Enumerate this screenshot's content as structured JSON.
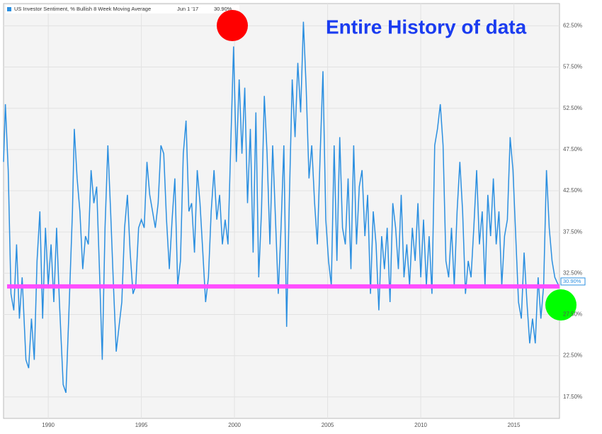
{
  "chart_data": {
    "type": "line",
    "title": "Entire History of data",
    "x": [
      1987.6,
      1987.7,
      1987.85,
      1988.0,
      1988.15,
      1988.3,
      1988.45,
      1988.6,
      1988.8,
      1988.95,
      1989.1,
      1989.25,
      1989.4,
      1989.55,
      1989.7,
      1989.85,
      1990.0,
      1990.15,
      1990.3,
      1990.45,
      1990.6,
      1990.8,
      1990.95,
      1991.1,
      1991.3,
      1991.4,
      1991.55,
      1991.7,
      1991.85,
      1992.0,
      1992.15,
      1992.3,
      1992.45,
      1992.6,
      1992.75,
      1992.9,
      1993.05,
      1993.2,
      1993.35,
      1993.5,
      1993.65,
      1993.8,
      1993.95,
      1994.1,
      1994.25,
      1994.4,
      1994.55,
      1994.7,
      1994.85,
      1995.0,
      1995.15,
      1995.3,
      1995.45,
      1995.6,
      1995.75,
      1995.9,
      1996.05,
      1996.2,
      1996.35,
      1996.5,
      1996.65,
      1996.8,
      1996.95,
      1997.1,
      1997.25,
      1997.4,
      1997.55,
      1997.7,
      1997.85,
      1998.0,
      1998.15,
      1998.3,
      1998.45,
      1998.6,
      1998.75,
      1998.9,
      1999.05,
      1999.2,
      1999.35,
      1999.5,
      1999.65,
      1999.8,
      1999.95,
      2000.1,
      2000.25,
      2000.4,
      2000.55,
      2000.7,
      2000.85,
      2001.0,
      2001.15,
      2001.3,
      2001.45,
      2001.6,
      2001.75,
      2001.9,
      2002.05,
      2002.2,
      2002.35,
      2002.5,
      2002.65,
      2002.8,
      2002.95,
      2003.1,
      2003.25,
      2003.4,
      2003.55,
      2003.7,
      2003.85,
      2004.0,
      2004.15,
      2004.3,
      2004.45,
      2004.6,
      2004.75,
      2004.9,
      2005.05,
      2005.2,
      2005.35,
      2005.5,
      2005.65,
      2005.8,
      2005.95,
      2006.1,
      2006.25,
      2006.4,
      2006.55,
      2006.7,
      2006.85,
      2007.0,
      2007.15,
      2007.3,
      2007.45,
      2007.6,
      2007.75,
      2007.9,
      2008.05,
      2008.2,
      2008.35,
      2008.5,
      2008.65,
      2008.8,
      2008.95,
      2009.1,
      2009.25,
      2009.4,
      2009.55,
      2009.7,
      2009.85,
      2010.0,
      2010.15,
      2010.3,
      2010.45,
      2010.6,
      2010.75,
      2010.9,
      2011.05,
      2011.2,
      2011.35,
      2011.5,
      2011.65,
      2011.8,
      2011.95,
      2012.1,
      2012.25,
      2012.4,
      2012.55,
      2012.7,
      2012.85,
      2013.0,
      2013.15,
      2013.3,
      2013.45,
      2013.6,
      2013.75,
      2013.9,
      2014.05,
      2014.2,
      2014.35,
      2014.5,
      2014.65,
      2014.8,
      2014.95,
      2015.1,
      2015.25,
      2015.4,
      2015.55,
      2015.7,
      2015.85,
      2016.0,
      2016.15,
      2016.3,
      2016.45,
      2016.6,
      2016.75,
      2016.9,
      2017.05,
      2017.2,
      2017.42
    ],
    "series": [
      {
        "name": "US Investor Sentiment, % Bullish 8 Week Moving Average",
        "color": "#2b8fe0",
        "last_date": "Jun 1 '17",
        "last_label": "30.90%",
        "values": [
          46,
          53,
          45,
          30,
          28,
          36,
          27,
          32,
          22,
          21,
          27,
          22,
          34,
          40,
          27,
          38,
          31,
          36,
          29,
          38,
          29,
          19,
          18,
          27,
          40,
          50,
          44,
          40,
          33,
          37,
          36,
          45,
          41,
          43,
          33,
          22,
          38,
          48,
          40,
          31,
          23,
          26,
          29,
          38,
          42,
          35,
          30,
          31,
          38,
          39,
          38,
          46,
          42,
          40,
          38,
          41,
          48,
          47,
          39,
          33,
          39,
          44,
          31,
          34,
          47,
          51,
          40,
          41,
          35,
          45,
          41,
          35,
          29,
          32,
          40,
          45,
          39,
          42,
          36,
          39,
          36,
          48,
          60,
          46,
          56,
          47,
          55,
          41,
          50,
          35,
          52,
          32,
          40,
          54,
          47,
          36,
          48,
          39,
          30,
          38,
          48,
          26,
          42,
          56,
          49,
          58,
          52,
          63,
          55,
          44,
          48,
          41,
          36,
          47,
          57,
          39,
          34,
          31,
          48,
          34,
          49,
          38,
          36,
          44,
          33,
          48,
          36,
          43,
          45,
          37,
          42,
          30,
          40,
          36,
          28,
          37,
          33,
          38,
          29,
          41,
          38,
          33,
          42,
          32,
          36,
          31,
          38,
          34,
          41,
          32,
          39,
          31,
          37,
          30,
          48,
          50,
          53,
          48,
          34,
          32,
          38,
          31,
          40,
          46,
          40,
          30,
          34,
          32,
          38,
          45,
          36,
          40,
          31,
          42,
          37,
          44,
          36,
          40,
          31,
          37,
          39,
          49,
          45,
          37,
          29,
          27,
          35,
          29,
          24,
          27,
          24,
          32,
          27,
          31,
          45,
          38,
          34,
          32,
          30.9
        ]
      }
    ],
    "xlim": [
      1987.6,
      2017.45
    ],
    "xticks": [
      1990,
      1995,
      2000,
      2005,
      2010,
      2015
    ],
    "ylim": [
      14.9,
      65.2
    ],
    "yticks": [
      {
        "value": 17.5,
        "label": "17.50%"
      },
      {
        "value": 22.5,
        "label": "22.50%"
      },
      {
        "value": 27.5,
        "label": "27.50%"
      },
      {
        "value": 32.5,
        "label": "32.50%"
      },
      {
        "value": 37.5,
        "label": "37.50%"
      },
      {
        "value": 42.5,
        "label": "42.50%"
      },
      {
        "value": 47.5,
        "label": "47.50%"
      },
      {
        "value": 52.5,
        "label": "52.50%"
      },
      {
        "value": 57.5,
        "label": "57.50%"
      },
      {
        "value": 62.5,
        "label": "62.50%"
      }
    ],
    "grid": true,
    "reference_line": {
      "value": 30.9,
      "color": "#ff4dff"
    },
    "title_color": "#1a3cf0"
  }
}
